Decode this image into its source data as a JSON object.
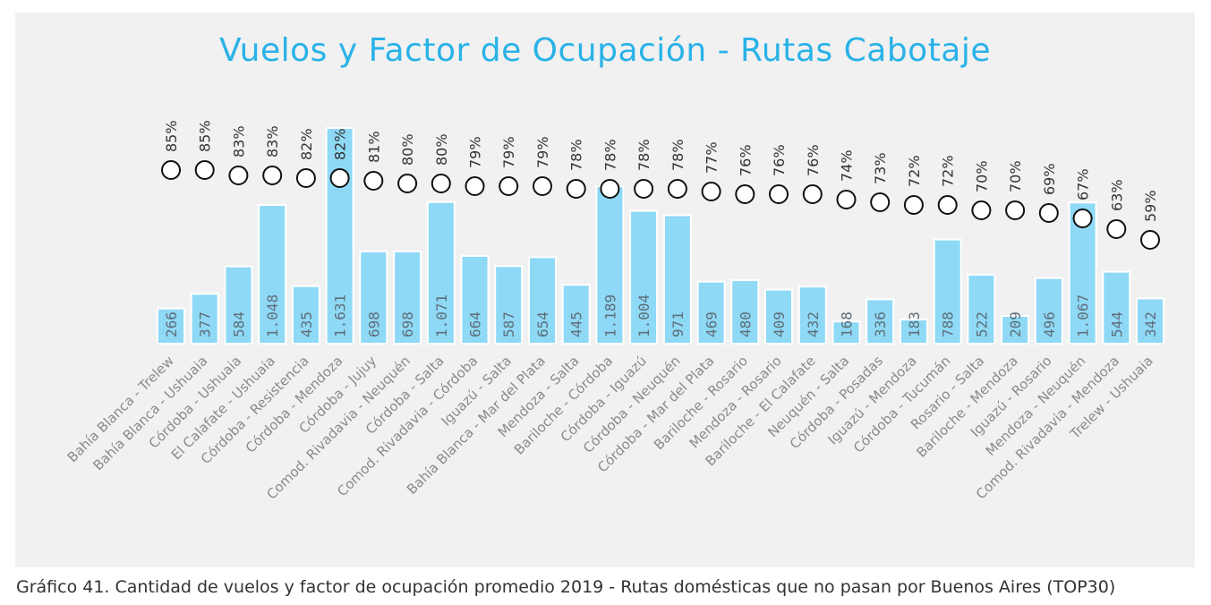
{
  "caption": "Gráfico 41. Cantidad de vuelos y factor de ocupación promedio 2019 - Rutas domésticas que no pasan por Buenos Aires (TOP30)",
  "colors": {
    "title": "#29b2e8",
    "bar": "#8ed9f6",
    "background": "#f1f1f1",
    "marker_stroke": "#111111"
  },
  "chart_data": {
    "type": "bar",
    "title": "Vuelos y Factor de Ocupación - Rutas Cabotaje",
    "xlabel": "",
    "ylabel": "",
    "grid": false,
    "legend": "none",
    "categories": [
      "Bahía Blanca - Trelew",
      "Bahía Blanca - Ushuaia",
      "Córdoba - Ushuaia",
      "El Calafate - Ushuaia",
      "Córdoba - Resistencia",
      "Córdoba - Mendoza",
      "Córdoba - Jujuy",
      "Comod. Rivadavia - Neuquén",
      "Córdoba - Salta",
      "Comod. Rivadavia - Córdoba",
      "Iguazú - Salta",
      "Bahía Blanca - Mar del Plata",
      "Mendoza - Salta",
      "Bariloche - Córdoba",
      "Córdoba - Iguazú",
      "Córdoba - Neuquén",
      "Córdoba - Mar del Plata",
      "Bariloche - Rosario",
      "Mendoza - Rosario",
      "Bariloche - El Calafate",
      "Neuquén - Salta",
      "Córdoba - Posadas",
      "Iguazú - Mendoza",
      "Córdoba - Tucumán",
      "Rosario - Salta",
      "Bariloche - Mendoza",
      "Iguazú - Rosario",
      "Mendoza - Neuquén",
      "Comod. Rivadavia - Mendoza",
      "Trelew - Ushuaia"
    ],
    "series": [
      {
        "type": "bar",
        "values": [
          266,
          377,
          584,
          1048,
          435,
          1631,
          698,
          698,
          1071,
          664,
          587,
          654,
          445,
          1189,
          1004,
          971,
          469,
          480,
          409,
          432,
          168,
          336,
          183,
          788,
          522,
          209,
          496,
          1067,
          544,
          342
        ],
        "labels": [
          "266",
          "377",
          "584",
          "1.048",
          "435",
          "1.631",
          "698",
          "698",
          "1.071",
          "664",
          "587",
          "654",
          "445",
          "1.189",
          "1.004",
          "971",
          "469",
          "480",
          "409",
          "432",
          "168",
          "336",
          "183",
          "788",
          "522",
          "209",
          "496",
          "1.067",
          "544",
          "342"
        ]
      },
      {
        "type": "scatter",
        "values": [
          85,
          85,
          83,
          83,
          82,
          82,
          81,
          80,
          80,
          79,
          79,
          79,
          78,
          78,
          78,
          78,
          77,
          76,
          76,
          76,
          74,
          73,
          72,
          72,
          70,
          70,
          69,
          67,
          63,
          59
        ],
        "labels": [
          "85%",
          "85%",
          "83%",
          "83%",
          "82%",
          "82%",
          "81%",
          "80%",
          "80%",
          "79%",
          "79%",
          "79%",
          "78%",
          "78%",
          "78%",
          "78%",
          "77%",
          "76%",
          "76%",
          "76%",
          "74%",
          "73%",
          "72%",
          "72%",
          "70%",
          "70%",
          "69%",
          "67%",
          "63%",
          "59%"
        ]
      }
    ],
    "bar_ylim": [
      0,
      1631
    ],
    "pct_ylim": [
      59,
      85
    ]
  }
}
